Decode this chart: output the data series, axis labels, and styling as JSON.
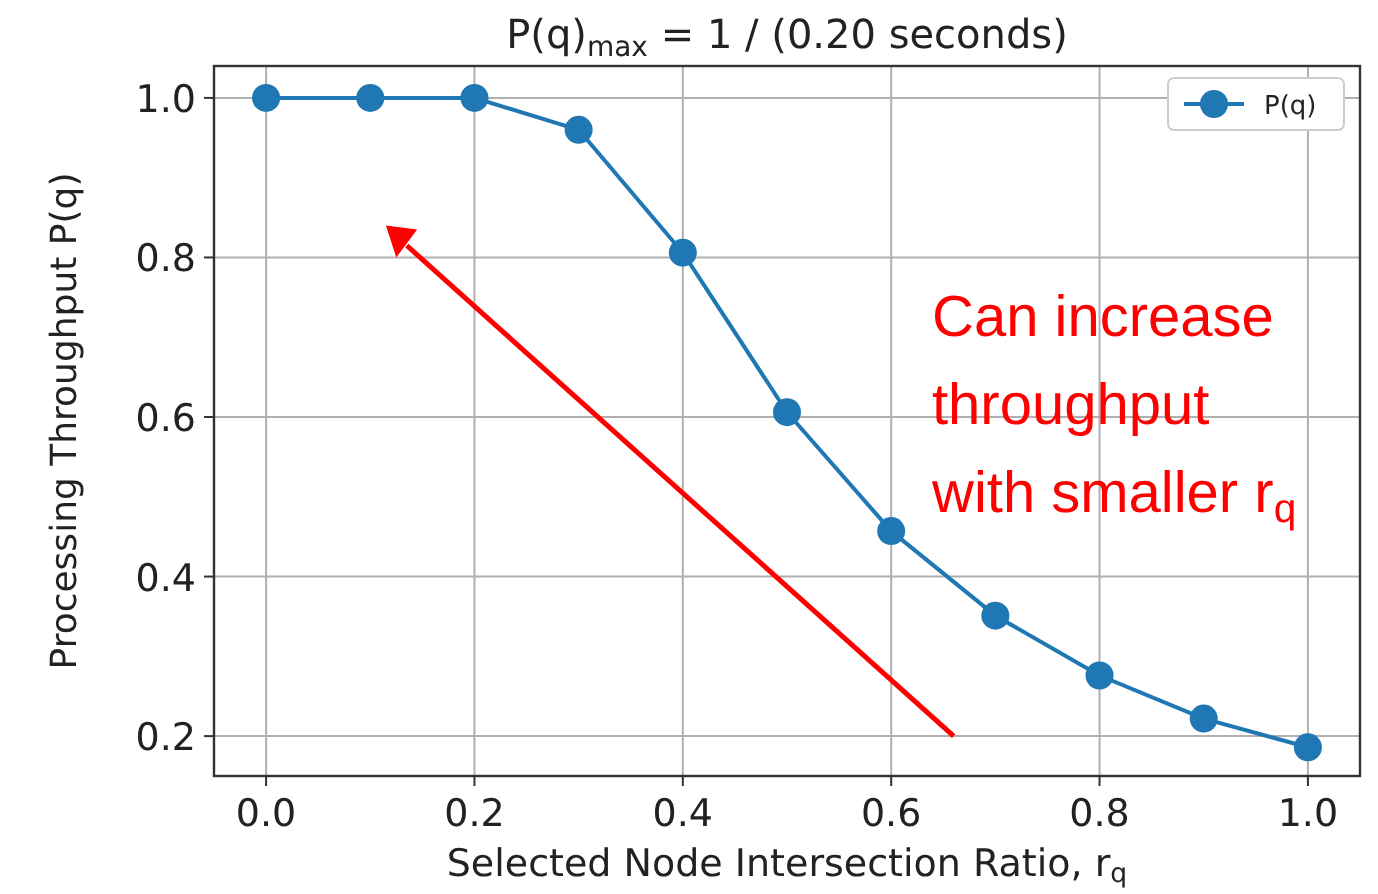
{
  "chart_data": {
    "type": "line",
    "title": "P(q)$_{max}$ = 1 / (0.20 seconds)",
    "xlabel": "Selected Node Intersection Ratio, r$_{q}$",
    "ylabel": "Processing Throughput P(q)",
    "x": [
      0,
      0.1,
      0.2,
      0.3,
      0.4,
      0.5,
      0.6,
      0.7,
      0.8,
      0.9,
      1.0
    ],
    "series": [
      {
        "name": "P(q)",
        "color": "#1f77b4",
        "values": [
          1.0,
          1.0,
          1.0,
          0.96,
          0.806,
          0.606,
          0.457,
          0.351,
          0.276,
          0.222,
          0.186
        ]
      }
    ],
    "xlim": [
      -0.05,
      1.05
    ],
    "ylim": [
      0.15,
      1.04
    ],
    "xticks": [
      {
        "value": 0,
        "label": "0.0"
      },
      0.2,
      0.4,
      0.6,
      0.8,
      {
        "value": 1,
        "label": "1.0"
      }
    ],
    "yticks": [
      0.2,
      0.4,
      0.6,
      0.8,
      {
        "value": 1,
        "label": "1.0"
      }
    ],
    "grid": true,
    "legend": "top right",
    "marker": "circle",
    "line_style": "solid",
    "annotations": [
      "Can increase throughput with smaller r$_{q}$"
    ]
  }
}
